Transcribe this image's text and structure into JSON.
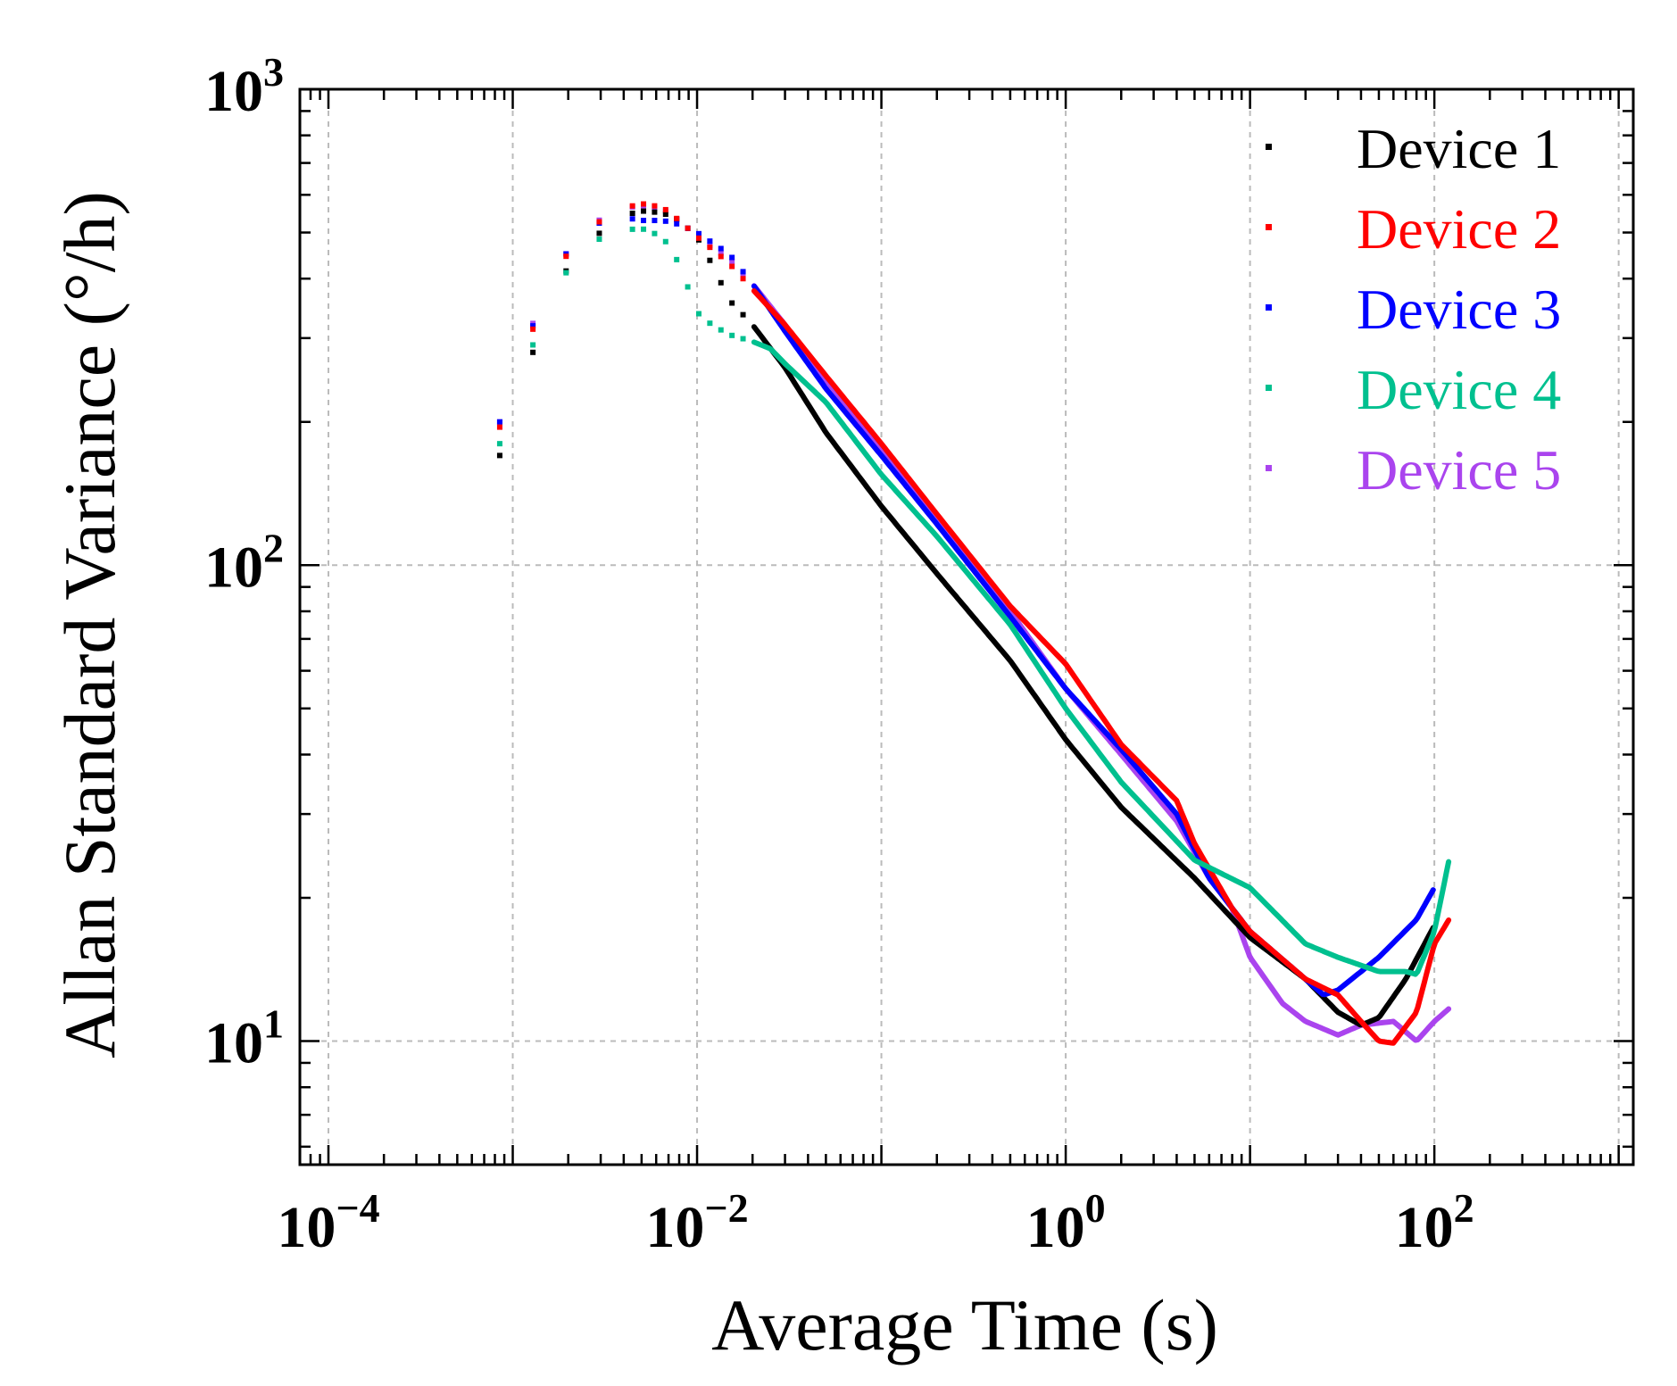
{
  "chart_data": {
    "type": "scatter",
    "title": "",
    "xlabel": "Average Time (s)",
    "ylabel": "Allan Standard Variance (°/h)",
    "x_scale": "log",
    "y_scale": "log",
    "xlim": [
      7e-05,
      1200
    ],
    "ylim": [
      5.5,
      1000
    ],
    "x_ticks": [
      {
        "value": 0.0001,
        "base": "10",
        "exp": "−4"
      },
      {
        "value": 0.01,
        "base": "10",
        "exp": "−2"
      },
      {
        "value": 1,
        "base": "10",
        "exp": "0"
      },
      {
        "value": 100,
        "base": "10",
        "exp": "2"
      }
    ],
    "y_ticks": [
      {
        "value": 10,
        "base": "10",
        "exp": "1"
      },
      {
        "value": 100,
        "base": "10",
        "exp": "2"
      },
      {
        "value": 1000,
        "base": "10",
        "exp": "3"
      }
    ],
    "grid": true,
    "legend_position": "top-right",
    "series": [
      {
        "name": "Device 1",
        "color": "#000000",
        "points": [
          [
            0.00085,
            170
          ],
          [
            0.0014,
            310
          ],
          [
            0.002,
            425
          ],
          [
            0.0028,
            490
          ],
          [
            0.0038,
            540
          ],
          [
            0.005,
            555
          ],
          [
            0.0065,
            550
          ],
          [
            0.008,
            530
          ],
          [
            0.01,
            490
          ],
          [
            0.012,
            430
          ],
          [
            0.015,
            360
          ],
          [
            0.02,
            320
          ],
          [
            0.03,
            260
          ],
          [
            0.05,
            190
          ],
          [
            0.1,
            133
          ],
          [
            0.2,
            96
          ],
          [
            0.5,
            63
          ],
          [
            1,
            43
          ],
          [
            2,
            31
          ],
          [
            5,
            22
          ],
          [
            10,
            16.5
          ],
          [
            20,
            13.5
          ],
          [
            30,
            11.5
          ],
          [
            40,
            10.8
          ],
          [
            50,
            11.2
          ],
          [
            70,
            13.5
          ],
          [
            100,
            17.5
          ]
        ]
      },
      {
        "name": "Device 2",
        "color": "#ff0000",
        "points": [
          [
            0.00085,
            195
          ],
          [
            0.0014,
            345
          ],
          [
            0.002,
            455
          ],
          [
            0.0028,
            520
          ],
          [
            0.0038,
            560
          ],
          [
            0.005,
            575
          ],
          [
            0.0065,
            565
          ],
          [
            0.008,
            530
          ],
          [
            0.01,
            490
          ],
          [
            0.015,
            430
          ],
          [
            0.02,
            380
          ],
          [
            0.03,
            320
          ],
          [
            0.05,
            250
          ],
          [
            0.1,
            180
          ],
          [
            0.2,
            128
          ],
          [
            0.5,
            82
          ],
          [
            1,
            62
          ],
          [
            2,
            42
          ],
          [
            4,
            32
          ],
          [
            5,
            26
          ],
          [
            8,
            19
          ],
          [
            10,
            17
          ],
          [
            20,
            13.5
          ],
          [
            30,
            12.5
          ],
          [
            40,
            11
          ],
          [
            50,
            10
          ],
          [
            60,
            9.9
          ],
          [
            80,
            11.5
          ],
          [
            100,
            16
          ],
          [
            120,
            18
          ]
        ]
      },
      {
        "name": "Device 3",
        "color": "#0000ff",
        "points": [
          [
            0.00085,
            200
          ],
          [
            0.0014,
            350
          ],
          [
            0.002,
            460
          ],
          [
            0.0028,
            520
          ],
          [
            0.0038,
            540
          ],
          [
            0.005,
            530
          ],
          [
            0.0065,
            530
          ],
          [
            0.008,
            520
          ],
          [
            0.01,
            500
          ],
          [
            0.015,
            450
          ],
          [
            0.02,
            390
          ],
          [
            0.03,
            310
          ],
          [
            0.05,
            235
          ],
          [
            0.1,
            170
          ],
          [
            0.2,
            122
          ],
          [
            0.5,
            78
          ],
          [
            1,
            55
          ],
          [
            2,
            41
          ],
          [
            4,
            30
          ],
          [
            6,
            22
          ],
          [
            10,
            17
          ],
          [
            20,
            13.5
          ],
          [
            25,
            12.5
          ],
          [
            30,
            12.8
          ],
          [
            50,
            15
          ],
          [
            80,
            18
          ],
          [
            100,
            21
          ]
        ]
      },
      {
        "name": "Device 4",
        "color": "#00c08f",
        "points": [
          [
            0.00085,
            180
          ],
          [
            0.0014,
            320
          ],
          [
            0.002,
            420
          ],
          [
            0.0028,
            480
          ],
          [
            0.0038,
            505
          ],
          [
            0.005,
            510
          ],
          [
            0.0065,
            490
          ],
          [
            0.008,
            430
          ],
          [
            0.01,
            340
          ],
          [
            0.012,
            320
          ],
          [
            0.015,
            305
          ],
          [
            0.02,
            295
          ],
          [
            0.025,
            285
          ],
          [
            0.03,
            265
          ],
          [
            0.05,
            220
          ],
          [
            0.1,
            155
          ],
          [
            0.2,
            115
          ],
          [
            0.5,
            75
          ],
          [
            1,
            50
          ],
          [
            2,
            35
          ],
          [
            5,
            24
          ],
          [
            10,
            21
          ],
          [
            20,
            16
          ],
          [
            30,
            15
          ],
          [
            50,
            14
          ],
          [
            70,
            14
          ],
          [
            80,
            13.8
          ],
          [
            100,
            17
          ],
          [
            120,
            24
          ]
        ]
      },
      {
        "name": "Device 5",
        "color": "#aa44ee",
        "points": [
          [
            0.00085,
            200
          ],
          [
            0.0014,
            355
          ],
          [
            0.002,
            460
          ],
          [
            0.0028,
            525
          ],
          [
            0.0038,
            560
          ],
          [
            0.005,
            570
          ],
          [
            0.0065,
            560
          ],
          [
            0.008,
            530
          ],
          [
            0.01,
            490
          ],
          [
            0.015,
            440
          ],
          [
            0.02,
            390
          ],
          [
            0.03,
            320
          ],
          [
            0.05,
            245
          ],
          [
            0.1,
            175
          ],
          [
            0.2,
            125
          ],
          [
            0.5,
            80
          ],
          [
            1,
            55
          ],
          [
            2,
            40
          ],
          [
            4,
            29
          ],
          [
            6,
            22
          ],
          [
            8,
            19
          ],
          [
            10,
            15
          ],
          [
            15,
            12
          ],
          [
            20,
            11
          ],
          [
            30,
            10.3
          ],
          [
            40,
            10.8
          ],
          [
            60,
            11
          ],
          [
            80,
            10
          ],
          [
            100,
            11
          ],
          [
            120,
            11.7
          ]
        ]
      }
    ]
  }
}
